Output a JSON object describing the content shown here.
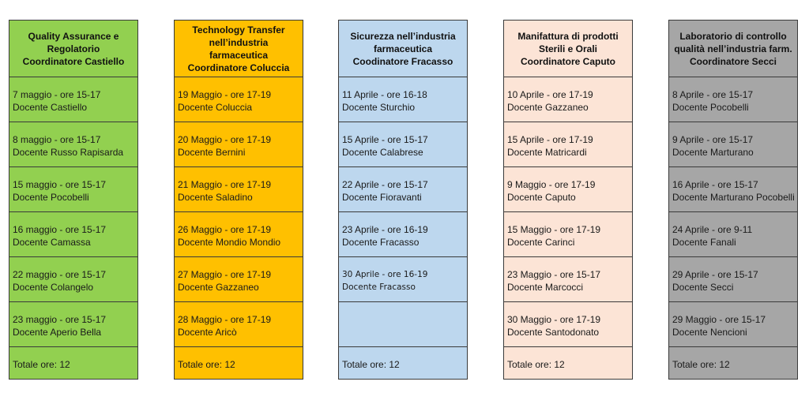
{
  "columns": [
    {
      "title": [
        "Quality Assurance e",
        "Regolatorio",
        "Coordinatore Castiello"
      ],
      "color": "#92d050",
      "rows": [
        [
          "7 maggio - ore 15-17",
          "Docente Castiello"
        ],
        [
          "8 maggio - ore 15-17",
          "Docente Russo Rapisarda"
        ],
        [
          "15 maggio - ore 15-17",
          "Docente Pocobelli"
        ],
        [
          "16 maggio - ore 15-17",
          "Docente Camassa"
        ],
        [
          "22 maggio - ore 15-17",
          "Docente Colangelo"
        ],
        [
          "23 maggio - ore 15-17",
          "Docente Aperio Bella"
        ]
      ],
      "total": "Totale ore: 12"
    },
    {
      "title": [
        "Technology Transfer",
        "nell’industria farmaceutica",
        "Coordinatore Coluccia"
      ],
      "color": "#ffc000",
      "rows": [
        [
          "19 Maggio - ore 17-19",
          "Docente Coluccia"
        ],
        [
          "20 Maggio - ore 17-19",
          "Docente Bernini"
        ],
        [
          "21 Maggio - ore 17-19",
          "Docente Saladino"
        ],
        [
          "26 Maggio - ore 17-19",
          "Docente Mondio Mondio"
        ],
        [
          "27 Maggio - ore 17-19",
          "Docente Gazzaneo"
        ],
        [
          "28 Maggio - ore 17-19",
          "Docente Aricò"
        ]
      ],
      "total": "Totale ore: 12"
    },
    {
      "title": [
        "Sicurezza nell’industria",
        "farmaceutica",
        "Coodinatore Fracasso"
      ],
      "color": "#bdd7ee",
      "rows": [
        [
          "11 Aprile - ore 16-18",
          "Docente Sturchio"
        ],
        [
          "15 Aprile - ore 15-17",
          "Docente Calabrese"
        ],
        [
          "22 Aprile - ore 15-17",
          "Docente Fioravanti"
        ],
        [
          "23 Aprile - ore 16-19",
          "Docente Fracasso"
        ],
        [
          "30 Aprile - ore 16-19",
          "Docente Fracasso"
        ],
        [
          "",
          ""
        ]
      ],
      "total": "Totale ore: 12"
    },
    {
      "title": [
        "Manifattura di prodotti",
        "Sterili e Orali",
        "Coordinatore Caputo"
      ],
      "color": "#fce4d6",
      "rows": [
        [
          "10 Aprile - ore 17-19",
          "Docente Gazzaneo"
        ],
        [
          "15 Aprile - ore 17-19",
          "Docente Matricardi"
        ],
        [
          "9 Maggio - ore 17-19",
          "Docente Caputo"
        ],
        [
          "15 Maggio - ore 17-19",
          "Docente Carinci"
        ],
        [
          "23 Maggio - ore 15-17",
          "Docente Marcocci"
        ],
        [
          "30 Maggio - ore 17-19",
          "Docente Santodonato"
        ]
      ],
      "total": "Totale ore: 12"
    },
    {
      "title": [
        "Laboratorio di controllo",
        "qualità nell’industria farm.",
        "Coordinatore Secci"
      ],
      "color": "#a6a6a6",
      "rows": [
        [
          "8 Aprile - ore 15-17",
          "Docente Pocobelli"
        ],
        [
          "9 Aprile - ore 15-17",
          "Docente Marturano"
        ],
        [
          "16 Aprile - ore 15-17",
          "Docente Marturano Pocobelli"
        ],
        [
          "24 Aprile - ore 9-11",
          "Docente Fanali"
        ],
        [
          "29 Aprile - ore 15-17",
          "Docente Secci"
        ],
        [
          "29 Maggio - ore 15-17",
          "Docente Nencioni"
        ]
      ],
      "total": "Totale ore: 12"
    }
  ]
}
